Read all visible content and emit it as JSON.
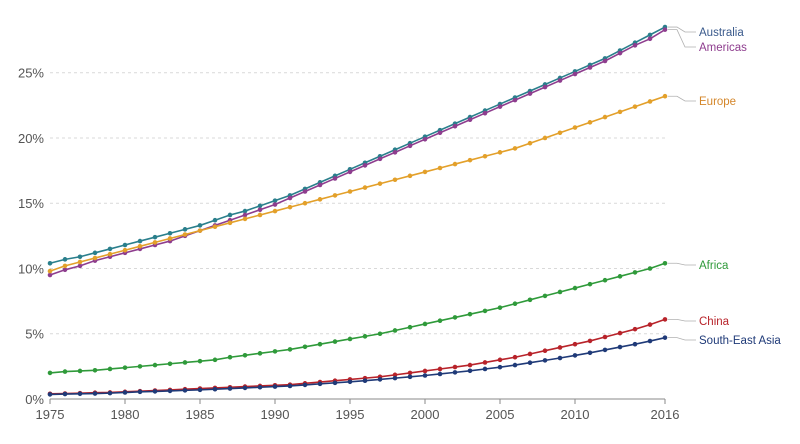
{
  "chart_data": {
    "type": "line",
    "title": "",
    "xlabel": "",
    "ylabel": "",
    "x": [
      1975,
      1976,
      1977,
      1978,
      1979,
      1980,
      1981,
      1982,
      1983,
      1984,
      1985,
      1986,
      1987,
      1988,
      1989,
      1990,
      1991,
      1992,
      1993,
      1994,
      1995,
      1996,
      1997,
      1998,
      1999,
      2000,
      2001,
      2002,
      2003,
      2004,
      2005,
      2006,
      2007,
      2008,
      2009,
      2010,
      2011,
      2012,
      2013,
      2014,
      2015,
      2016
    ],
    "xlim": [
      1975,
      2016
    ],
    "ylim": [
      0,
      29.5
    ],
    "grid": true,
    "legend": "inline-right",
    "x_ticks": [
      1975,
      1980,
      1985,
      1990,
      1995,
      2000,
      2005,
      2010,
      2016
    ],
    "x_tick_labels": [
      "1975",
      "1980",
      "1985",
      "1990",
      "1995",
      "2000",
      "2005",
      "2010",
      "2016"
    ],
    "y_ticks": [
      0,
      5,
      10,
      15,
      20,
      25
    ],
    "y_tick_labels": [
      "0%",
      "5%",
      "10%",
      "15%",
      "20%",
      "25%"
    ],
    "series": [
      {
        "name": "Australia",
        "color": "#2a7f8c",
        "label_color": "#3a5a8c",
        "values": [
          10.4,
          10.7,
          10.9,
          11.2,
          11.5,
          11.8,
          12.1,
          12.4,
          12.7,
          13.0,
          13.3,
          13.7,
          14.1,
          14.4,
          14.8,
          15.2,
          15.6,
          16.1,
          16.6,
          17.1,
          17.6,
          18.1,
          18.6,
          19.1,
          19.6,
          20.1,
          20.6,
          21.1,
          21.6,
          22.1,
          22.6,
          23.1,
          23.6,
          24.1,
          24.6,
          25.1,
          25.6,
          26.1,
          26.7,
          27.3,
          27.9,
          28.5
        ]
      },
      {
        "name": "Americas",
        "color": "#8e3d8e",
        "label_color": "#8e3d8e",
        "values": [
          9.5,
          9.9,
          10.2,
          10.6,
          10.9,
          11.2,
          11.5,
          11.8,
          12.1,
          12.5,
          12.9,
          13.3,
          13.7,
          14.1,
          14.5,
          14.9,
          15.4,
          15.9,
          16.4,
          16.9,
          17.4,
          17.9,
          18.4,
          18.9,
          19.4,
          19.9,
          20.4,
          20.9,
          21.4,
          21.9,
          22.4,
          22.9,
          23.4,
          23.9,
          24.4,
          24.9,
          25.4,
          25.9,
          26.5,
          27.1,
          27.6,
          28.3
        ]
      },
      {
        "name": "Europe",
        "color": "#e3a02a",
        "label_color": "#d4862a",
        "values": [
          9.8,
          10.2,
          10.5,
          10.8,
          11.1,
          11.4,
          11.7,
          12.0,
          12.3,
          12.6,
          12.9,
          13.2,
          13.5,
          13.8,
          14.1,
          14.4,
          14.7,
          15.0,
          15.3,
          15.6,
          15.9,
          16.2,
          16.5,
          16.8,
          17.1,
          17.4,
          17.7,
          18.0,
          18.3,
          18.6,
          18.9,
          19.2,
          19.6,
          20.0,
          20.4,
          20.8,
          21.2,
          21.6,
          22.0,
          22.4,
          22.8,
          23.2
        ]
      },
      {
        "name": "Africa",
        "color": "#2f9a3a",
        "label_color": "#2f9a3a",
        "values": [
          2.0,
          2.1,
          2.15,
          2.2,
          2.3,
          2.4,
          2.5,
          2.6,
          2.7,
          2.8,
          2.9,
          3.0,
          3.2,
          3.35,
          3.5,
          3.65,
          3.8,
          4.0,
          4.2,
          4.4,
          4.6,
          4.8,
          5.0,
          5.25,
          5.5,
          5.75,
          6.0,
          6.25,
          6.5,
          6.75,
          7.0,
          7.3,
          7.6,
          7.9,
          8.2,
          8.5,
          8.8,
          9.1,
          9.4,
          9.7,
          10.0,
          10.4
        ]
      },
      {
        "name": "China",
        "color": "#b8232a",
        "label_color": "#b8232a",
        "values": [
          0.4,
          0.42,
          0.45,
          0.48,
          0.5,
          0.55,
          0.6,
          0.65,
          0.7,
          0.75,
          0.8,
          0.85,
          0.9,
          0.95,
          1.0,
          1.05,
          1.1,
          1.2,
          1.3,
          1.4,
          1.5,
          1.6,
          1.7,
          1.85,
          2.0,
          2.15,
          2.3,
          2.45,
          2.6,
          2.8,
          3.0,
          3.2,
          3.45,
          3.7,
          3.95,
          4.2,
          4.45,
          4.75,
          5.05,
          5.35,
          5.7,
          6.1
        ]
      },
      {
        "name": "South-East Asia",
        "color": "#1f3a78",
        "label_color": "#1f3a78",
        "values": [
          0.35,
          0.38,
          0.4,
          0.42,
          0.45,
          0.5,
          0.55,
          0.58,
          0.62,
          0.66,
          0.7,
          0.75,
          0.8,
          0.85,
          0.9,
          0.95,
          1.0,
          1.08,
          1.16,
          1.24,
          1.32,
          1.4,
          1.5,
          1.6,
          1.7,
          1.8,
          1.92,
          2.04,
          2.16,
          2.3,
          2.44,
          2.6,
          2.78,
          2.96,
          3.14,
          3.34,
          3.54,
          3.76,
          3.98,
          4.2,
          4.44,
          4.7
        ]
      }
    ]
  }
}
